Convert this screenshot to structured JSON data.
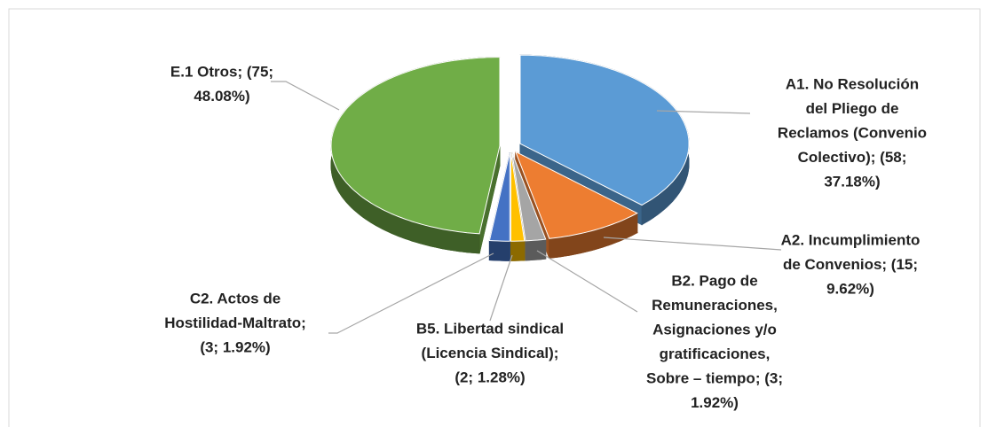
{
  "chart_data": {
    "type": "pie",
    "values": [
      58,
      15,
      3,
      2,
      3,
      75
    ],
    "value_labels": [
      [
        "A1. No Resolución",
        "del Pliego de",
        "Reclamos (Convenio",
        "Colectivo); (58;",
        "37.18%)"
      ],
      [
        "A2. Incumplimiento",
        "de Convenios; (15;",
        "9.62%)"
      ],
      [
        "B2. Pago de",
        "Remuneraciones,",
        "Asignaciones y/o",
        "gratificaciones,",
        "Sobre – tiempo; (3;",
        "1.92%)"
      ],
      [
        "B5. Libertad sindical",
        "(Licencia Sindical);",
        "(2; 1.28%)"
      ],
      [
        "C2. Actos de",
        "Hostilidad-Maltrato;",
        "(3; 1.92%)"
      ],
      [
        "E.1 Otros; (75;",
        "48.08%)"
      ]
    ],
    "colors": [
      "#5b9bd5",
      "#ed7d31",
      "#a5a5a5",
      "#ffc000",
      "#4472c4",
      "#70ad47"
    ]
  }
}
